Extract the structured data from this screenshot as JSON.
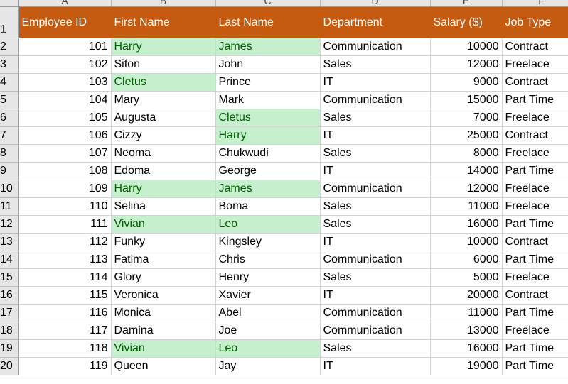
{
  "sheet": {
    "column_letters": [
      "A",
      "B",
      "C",
      "D",
      "E",
      "F"
    ],
    "header_row_number": "1",
    "headers": [
      "Employee ID",
      "First Name",
      "Last Name",
      "Department",
      "Salary ($)",
      "Job Type"
    ],
    "rows": [
      {
        "row_number": "2",
        "id": "101",
        "first": "Harry",
        "last": "James",
        "dept": "Communication",
        "salary": "10000",
        "type": "Contract",
        "dup_first": true,
        "dup_last": true
      },
      {
        "row_number": "3",
        "id": "102",
        "first": "Sifon",
        "last": "John",
        "dept": "Sales",
        "salary": "12000",
        "type": "Freelace",
        "dup_first": false,
        "dup_last": false
      },
      {
        "row_number": "4",
        "id": "103",
        "first": "Cletus",
        "last": "Prince",
        "dept": "IT",
        "salary": "9000",
        "type": "Contract",
        "dup_first": true,
        "dup_last": false
      },
      {
        "row_number": "5",
        "id": "104",
        "first": "Mary",
        "last": "Mark",
        "dept": "Communication",
        "salary": "15000",
        "type": "Part Time",
        "dup_first": false,
        "dup_last": false
      },
      {
        "row_number": "6",
        "id": "105",
        "first": "Augusta",
        "last": "Cletus",
        "dept": "Sales",
        "salary": "7000",
        "type": "Freelace",
        "dup_first": false,
        "dup_last": true
      },
      {
        "row_number": "7",
        "id": "106",
        "first": "Cizzy",
        "last": "Harry",
        "dept": "IT",
        "salary": "25000",
        "type": "Contract",
        "dup_first": false,
        "dup_last": true
      },
      {
        "row_number": "8",
        "id": "107",
        "first": "Neoma",
        "last": "Chukwudi",
        "dept": "Sales",
        "salary": "8000",
        "type": "Freelace",
        "dup_first": false,
        "dup_last": false
      },
      {
        "row_number": "9",
        "id": "108",
        "first": "Edoma",
        "last": "George",
        "dept": "IT",
        "salary": "14000",
        "type": "Part Time",
        "dup_first": false,
        "dup_last": false
      },
      {
        "row_number": "10",
        "id": "109",
        "first": "Harry",
        "last": "James",
        "dept": "Communication",
        "salary": "12000",
        "type": "Freelace",
        "dup_first": true,
        "dup_last": true
      },
      {
        "row_number": "11",
        "id": "110",
        "first": "Selina",
        "last": "Boma",
        "dept": "Sales",
        "salary": "11000",
        "type": "Freelace",
        "dup_first": false,
        "dup_last": false
      },
      {
        "row_number": "12",
        "id": "111",
        "first": "Vivian",
        "last": "Leo",
        "dept": "Sales",
        "salary": "16000",
        "type": "Part Time",
        "dup_first": true,
        "dup_last": true
      },
      {
        "row_number": "13",
        "id": "112",
        "first": "Funky",
        "last": "Kingsley",
        "dept": "IT",
        "salary": "10000",
        "type": "Contract",
        "dup_first": false,
        "dup_last": false
      },
      {
        "row_number": "14",
        "id": "113",
        "first": "Fatima",
        "last": "Chris",
        "dept": "Communication",
        "salary": "6000",
        "type": "Part Time",
        "dup_first": false,
        "dup_last": false
      },
      {
        "row_number": "15",
        "id": "114",
        "first": "Glory",
        "last": "Henry",
        "dept": "Sales",
        "salary": "5000",
        "type": "Freelace",
        "dup_first": false,
        "dup_last": false
      },
      {
        "row_number": "16",
        "id": "115",
        "first": "Veronica",
        "last": "Xavier",
        "dept": "IT",
        "salary": "20000",
        "type": "Contract",
        "dup_first": false,
        "dup_last": false
      },
      {
        "row_number": "17",
        "id": "116",
        "first": "Monica",
        "last": "Abel",
        "dept": "Communication",
        "salary": "11000",
        "type": "Part Time",
        "dup_first": false,
        "dup_last": false
      },
      {
        "row_number": "18",
        "id": "117",
        "first": "Damina",
        "last": "Joe",
        "dept": "Communication",
        "salary": "13000",
        "type": "Freelace",
        "dup_first": false,
        "dup_last": false
      },
      {
        "row_number": "19",
        "id": "118",
        "first": "Vivian",
        "last": "Leo",
        "dept": "Sales",
        "salary": "16000",
        "type": "Part Time",
        "dup_first": true,
        "dup_last": true
      },
      {
        "row_number": "20",
        "id": "119",
        "first": "Queen",
        "last": "Jay",
        "dept": "IT",
        "salary": "19000",
        "type": "Part Time",
        "dup_first": false,
        "dup_last": false
      }
    ]
  },
  "colors": {
    "header_fill": "#c55a11",
    "header_text": "#ffffff",
    "duplicate_fill": "#c6efce",
    "duplicate_text": "#006100"
  }
}
